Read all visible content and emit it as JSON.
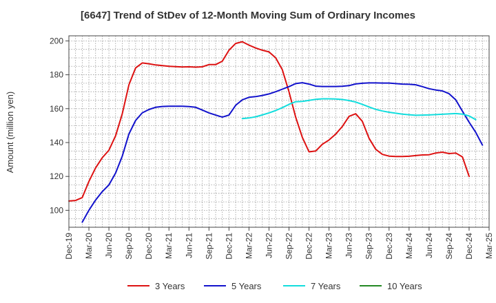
{
  "chart_data": {
    "type": "line",
    "title": "[6647]  Trend of StDev of 12-Month Moving Sum of Ordinary Incomes",
    "xlabel": "",
    "ylabel": "Amount (million yen)",
    "ylim": [
      90,
      203
    ],
    "yticks": [
      100,
      120,
      140,
      160,
      180,
      200
    ],
    "x_tick_labels": [
      "Dec-19",
      "Mar-20",
      "Jun-20",
      "Sep-20",
      "Dec-20",
      "Mar-21",
      "Jun-21",
      "Sep-21",
      "Dec-21",
      "Mar-22",
      "Jun-22",
      "Sep-22",
      "Dec-22",
      "Mar-23",
      "Jun-23",
      "Sep-23",
      "Dec-23",
      "Mar-24",
      "Jun-24",
      "Sep-24",
      "Dec-24",
      "Mar-25"
    ],
    "grid": true,
    "legend_position": "bottom",
    "series": [
      {
        "name": "3 Years",
        "color": "#dd1111",
        "start_index": 0,
        "values": [
          105.5,
          105.8,
          107.5,
          117,
          125,
          131,
          135.5,
          144,
          157,
          174,
          184,
          187,
          186.5,
          185.8,
          185.4,
          185,
          184.8,
          184.6,
          184.7,
          184.5,
          184.7,
          186,
          186,
          188,
          194.5,
          198.5,
          199.5,
          197.5,
          195.8,
          194.5,
          193.5,
          190,
          183,
          170,
          155,
          143,
          134.5,
          135,
          139,
          141.5,
          145,
          149.5,
          155.5,
          157,
          152.5,
          142.5,
          136,
          133,
          132,
          131.8,
          131.8,
          131.9,
          132.3,
          132.7,
          132.8,
          133.8,
          134.3,
          133.5,
          133.8,
          131.5,
          120
        ]
      },
      {
        "name": "5 Years",
        "color": "#1111cc",
        "start_index": 2,
        "values": [
          93,
          100,
          106,
          111,
          115,
          122,
          132,
          145,
          153,
          157.5,
          159.5,
          160.8,
          161.3,
          161.4,
          161.4,
          161.4,
          161.2,
          160.8,
          159.2,
          157.5,
          156.2,
          155,
          156.2,
          162,
          165.2,
          166.7,
          167.1,
          167.8,
          168.7,
          170,
          171.5,
          173,
          174.8,
          175.3,
          174.5,
          173.3,
          173.1,
          173.1,
          173.1,
          173.2,
          173.6,
          174.6,
          175,
          175.2,
          175.2,
          175.1,
          175.1,
          174.8,
          174.5,
          174.4,
          174.1,
          173,
          171.8,
          171,
          170.5,
          168.8,
          165.2,
          158.5,
          152,
          146,
          138.5
        ]
      },
      {
        "name": "7 Years",
        "color": "#11dddd",
        "start_index": 26,
        "values": [
          154.1,
          154.5,
          155.2,
          156.3,
          157.5,
          158.9,
          160.6,
          162.5,
          164.1,
          164.3,
          164.9,
          165.5,
          165.8,
          165.8,
          165.7,
          165.4,
          164.8,
          163.9,
          162.5,
          161,
          159.6,
          158.6,
          157.9,
          157.3,
          156.8,
          156.4,
          156.1,
          156.2,
          156.3,
          156.5,
          156.7,
          156.9,
          157.1,
          156.8,
          155.7,
          153.5
        ]
      },
      {
        "name": "10 Years",
        "color": "#228822",
        "start_index": 0,
        "values": []
      }
    ]
  }
}
